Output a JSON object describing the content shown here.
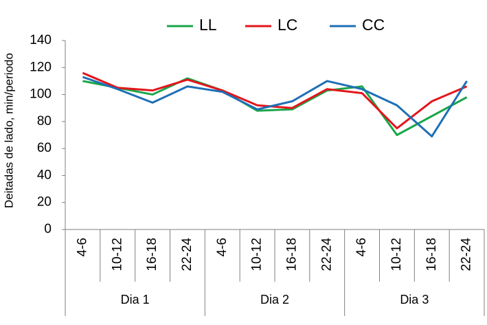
{
  "chart_data": {
    "type": "line",
    "y_label": "Deitadas  de lado, min/periodo",
    "categories": [
      "4-6",
      "10-12",
      "16-18",
      "22-24",
      "4-6",
      "10-12",
      "16-18",
      "22-24",
      "4-6",
      "10-12",
      "16-18",
      "22-24"
    ],
    "groups": [
      "Dia 1",
      "Dia 2",
      "Dia 3"
    ],
    "series": [
      {
        "name": "LL",
        "color": "#1aa64a",
        "values": [
          110,
          105,
          100,
          112,
          103,
          88,
          89,
          103,
          106,
          70,
          84,
          98
        ]
      },
      {
        "name": "LC",
        "color": "#e3151b",
        "values": [
          116,
          105,
          103,
          111,
          103,
          92,
          90,
          104,
          101,
          75,
          95,
          106
        ]
      },
      {
        "name": "CC",
        "color": "#1f6fb5",
        "values": [
          113,
          104,
          94,
          106,
          102,
          89,
          95,
          110,
          104,
          92,
          69,
          110
        ]
      }
    ],
    "ylim": [
      0,
      140
    ],
    "yticks": [
      0,
      20,
      40,
      60,
      80,
      100,
      120,
      140
    ],
    "grid": false,
    "legend": "top"
  }
}
